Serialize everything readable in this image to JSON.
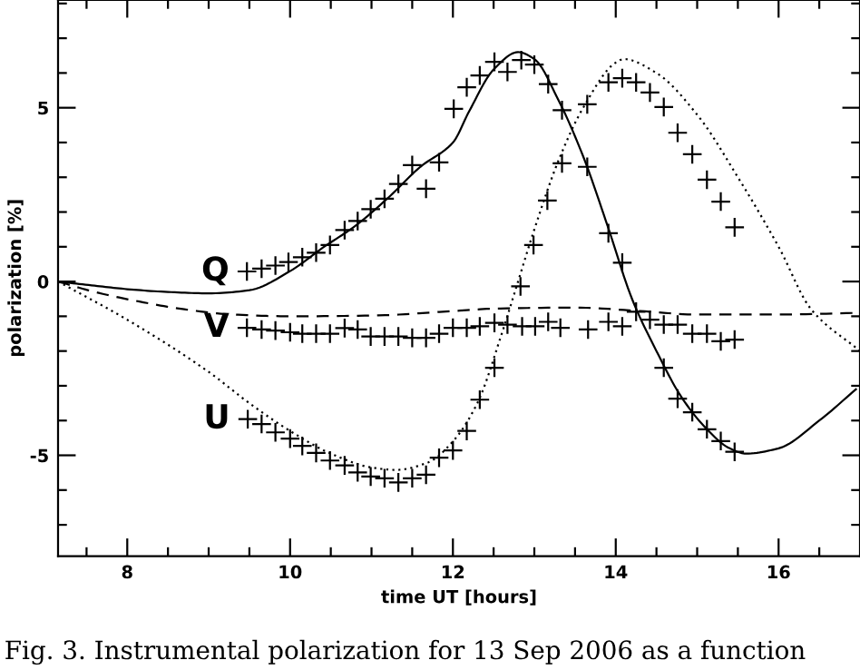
{
  "chart_data": {
    "type": "line",
    "xlabel": "time UT [hours]",
    "ylabel": "polarization [%]",
    "xlim": [
      7.15,
      17
    ],
    "ylim": [
      -7.9,
      8.1
    ],
    "xticks": [
      {
        "value": 7.5,
        "label": null
      },
      8,
      {
        "value": 8.5,
        "label": null
      },
      {
        "value": 9,
        "label": null
      },
      {
        "value": 9.5,
        "label": null
      },
      10,
      {
        "value": 10.5,
        "label": null
      },
      {
        "value": 11,
        "label": null
      },
      {
        "value": 11.5,
        "label": null
      },
      12,
      {
        "value": 12.5,
        "label": null
      },
      {
        "value": 13,
        "label": null
      },
      {
        "value": 13.5,
        "label": null
      },
      14,
      {
        "value": 14.5,
        "label": null
      },
      {
        "value": 15,
        "label": null
      },
      {
        "value": 15.5,
        "label": null
      },
      16,
      {
        "value": 16.5,
        "label": null
      }
    ],
    "yticks": [
      {
        "value": -7,
        "label": null
      },
      {
        "value": -6,
        "label": null
      },
      {
        "value": -5,
        "label": "-5"
      },
      {
        "value": -4,
        "label": null
      },
      {
        "value": -3,
        "label": null
      },
      {
        "value": -2,
        "label": null
      },
      {
        "value": -1,
        "label": null
      },
      0,
      {
        "value": 1,
        "label": null
      },
      {
        "value": 2,
        "label": null
      },
      {
        "value": 3,
        "label": null
      },
      {
        "value": 4,
        "label": null
      },
      5,
      {
        "value": 6,
        "label": null
      },
      {
        "value": 7,
        "label": null
      },
      {
        "value": 8,
        "label": null
      }
    ],
    "grid": false,
    "series": [
      {
        "line_style": "solid",
        "color": "#000000",
        "x": [
          7.15,
          7.6,
          8,
          8.5,
          9,
          9.5,
          10,
          10.4,
          10.8,
          11.2,
          11.6,
          12,
          12.2,
          12.5,
          12.8,
          13.0,
          13.3,
          13.6,
          13.9,
          14.2,
          14.5,
          14.8,
          15.1,
          15.4,
          15.6,
          16.0,
          16.5,
          16.95
        ],
        "values": [
          0,
          -0.12,
          -0.22,
          -0.3,
          -0.34,
          -0.25,
          0.3,
          0.97,
          1.6,
          2.4,
          3.3,
          4.0,
          4.9,
          6.1,
          6.6,
          6.4,
          5.2,
          3.6,
          1.6,
          -0.5,
          -2.0,
          -3.3,
          -4.2,
          -4.8,
          -4.95,
          -4.8,
          -4.0,
          -3.1
        ]
      },
      {
        "line_style": "dashed",
        "color": "#000000",
        "x": [
          7.15,
          7.6,
          8.2,
          8.7,
          9.3,
          10,
          11,
          12,
          12.5,
          13.5,
          14.3,
          15,
          16,
          17
        ],
        "values": [
          0,
          -0.3,
          -0.6,
          -0.8,
          -0.95,
          -1.0,
          -0.98,
          -0.85,
          -0.78,
          -0.75,
          -0.85,
          -0.95,
          -0.95,
          -0.9
        ]
      },
      {
        "line_style": "dotted",
        "color": "#000000",
        "x": [
          7.15,
          8,
          9,
          9.5,
          10,
          10.5,
          11,
          11.3,
          11.7,
          12,
          12.3,
          12.6,
          12.8,
          13.0,
          13.3,
          13.6,
          14.0,
          14.1,
          14.5,
          15.0,
          15.5,
          16.0,
          16.4,
          17
        ],
        "values": [
          0,
          -1.1,
          -2.6,
          -3.5,
          -4.3,
          -4.95,
          -5.35,
          -5.42,
          -5.2,
          -4.6,
          -3.5,
          -1.5,
          0.0,
          1.5,
          3.5,
          5.0,
          6.3,
          6.4,
          6.0,
          4.8,
          3.0,
          1.0,
          -0.8,
          -2.0
        ]
      },
      {
        "type": "scatter",
        "name": "Q",
        "marker": "cross",
        "color": "#000000",
        "x": [
          9.47,
          9.65,
          9.82,
          9.98,
          10.15,
          10.32,
          10.49,
          10.67,
          10.83,
          10.99,
          11.16,
          11.33,
          11.5,
          11.67,
          11.83,
          12.01,
          12.17,
          12.33,
          12.51,
          12.67,
          12.84,
          13.0,
          13.17,
          13.34,
          13.65,
          13.91,
          14.08,
          14.25,
          14.59,
          14.76,
          14.94,
          15.12,
          15.29,
          15.46
        ],
        "values": [
          0.29,
          0.37,
          0.46,
          0.56,
          0.7,
          0.83,
          1.05,
          1.48,
          1.74,
          2.08,
          2.38,
          2.81,
          3.35,
          2.67,
          3.43,
          4.97,
          5.59,
          5.93,
          6.32,
          6.03,
          6.37,
          6.24,
          5.68,
          4.93,
          3.3,
          1.39,
          0.54,
          -0.87,
          -2.48,
          -3.37,
          -3.76,
          -4.25,
          -4.59,
          -4.9
        ]
      },
      {
        "type": "scatter",
        "name": "V",
        "marker": "cross",
        "color": "#000000",
        "x": [
          9.47,
          9.65,
          9.82,
          10.0,
          10.15,
          10.32,
          10.49,
          10.67,
          10.83,
          10.99,
          11.16,
          11.33,
          11.5,
          11.67,
          11.83,
          12.0,
          12.17,
          12.33,
          12.51,
          12.85,
          13.01,
          13.17,
          13.32,
          13.66,
          13.91,
          14.08,
          14.42,
          14.59,
          14.76,
          14.94,
          15.12,
          15.29,
          15.46
        ],
        "values": [
          -1.33,
          -1.38,
          -1.41,
          -1.46,
          -1.5,
          -1.5,
          -1.5,
          -1.34,
          -1.38,
          -1.58,
          -1.58,
          -1.58,
          -1.62,
          -1.62,
          -1.5,
          -1.33,
          -1.33,
          -1.29,
          -1.19,
          -1.29,
          -1.29,
          -1.16,
          -1.33,
          -1.38,
          -1.16,
          -1.29,
          -1.1,
          -1.24,
          -1.24,
          -1.5,
          -1.5,
          -1.72,
          -1.67
        ]
      },
      {
        "type": "scatter",
        "name": "U",
        "marker": "cross",
        "color": "#000000",
        "x": [
          9.48,
          9.65,
          9.82,
          10.0,
          10.15,
          10.32,
          10.49,
          10.67,
          10.83,
          10.99,
          11.16,
          11.33,
          11.5,
          11.67,
          11.83,
          12.0,
          12.17,
          12.33,
          12.51,
          12.67,
          12.83,
          12.99,
          13.16,
          13.34,
          13.65,
          13.91,
          14.08,
          14.25,
          14.42,
          14.59,
          14.76,
          14.94,
          15.12,
          15.29,
          15.46
        ],
        "values": [
          -3.96,
          -4.1,
          -4.34,
          -4.52,
          -4.73,
          -4.93,
          -5.15,
          -5.29,
          -5.49,
          -5.61,
          -5.66,
          -5.78,
          -5.66,
          -5.56,
          -5.07,
          -4.86,
          -4.3,
          -3.4,
          -2.48,
          -1.24,
          -0.14,
          1.05,
          2.33,
          3.4,
          5.1,
          5.73,
          5.85,
          5.73,
          5.44,
          5.02,
          4.28,
          3.66,
          2.93,
          2.3,
          1.56
        ]
      }
    ],
    "annotations": [
      "Fig. 3. Instrumental polarization for 13 Sep 2006 as a function"
    ]
  }
}
